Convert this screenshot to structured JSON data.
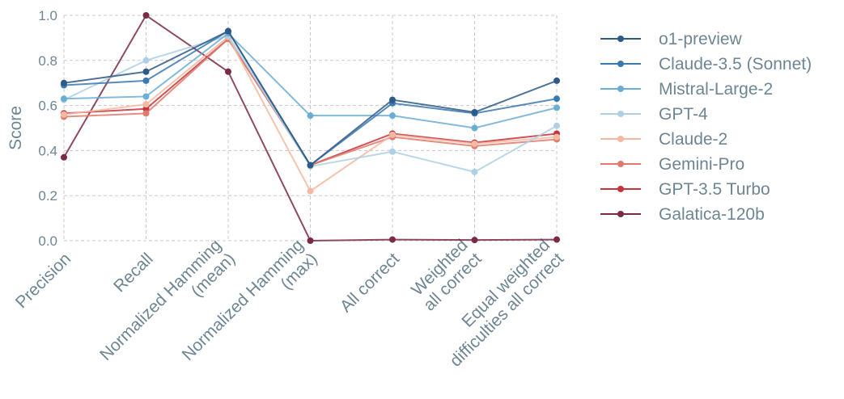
{
  "chart_data": {
    "type": "line",
    "ylabel": "Score",
    "ylim": [
      0,
      1.0
    ],
    "yticks": [
      "0.0",
      "0.2",
      "0.4",
      "0.6",
      "0.8",
      "1.0"
    ],
    "yticks_values": [
      0,
      0.2,
      0.4,
      0.6,
      0.8,
      1.0
    ],
    "grid": true,
    "legend_position": "right",
    "categories": [
      "Precision",
      "Recall",
      "Normalized Hamming\n(mean)",
      "Normalized Hamming\n(max)",
      "All correct",
      "Weighted\nall correct",
      "Equal weighted\ndifficulties all correct"
    ],
    "series": [
      {
        "name": "o1-preview",
        "color": "#2e5a87",
        "values": [
          0.7,
          0.75,
          0.93,
          0.335,
          0.625,
          0.57,
          0.71
        ]
      },
      {
        "name": "Claude-3.5 (Sonnet)",
        "color": "#3a78b0",
        "values": [
          0.69,
          0.71,
          0.93,
          0.335,
          0.61,
          0.565,
          0.63
        ]
      },
      {
        "name": "Mistral-Large-2",
        "color": "#6aaed6",
        "values": [
          0.63,
          0.64,
          0.92,
          0.555,
          0.555,
          0.5,
          0.59
        ]
      },
      {
        "name": "GPT-4",
        "color": "#aed0e6",
        "values": [
          0.625,
          0.8,
          0.91,
          0.33,
          0.395,
          0.305,
          0.51
        ]
      },
      {
        "name": "Claude-2",
        "color": "#f4b9a0",
        "values": [
          0.56,
          0.605,
          0.905,
          0.22,
          0.47,
          0.43,
          0.46
        ]
      },
      {
        "name": "Gemini-Pro",
        "color": "#e07a6a",
        "values": [
          0.55,
          0.565,
          0.895,
          0.335,
          0.46,
          0.42,
          0.45
        ]
      },
      {
        "name": "GPT-3.5 Turbo",
        "color": "#c8323a",
        "values": [
          0.565,
          0.585,
          0.895,
          0.335,
          0.475,
          0.435,
          0.475
        ]
      },
      {
        "name": "Galatica-120b",
        "color": "#7a2a45",
        "values": [
          0.37,
          1.0,
          0.75,
          0.0,
          0.005,
          0.003,
          0.005
        ]
      }
    ]
  }
}
